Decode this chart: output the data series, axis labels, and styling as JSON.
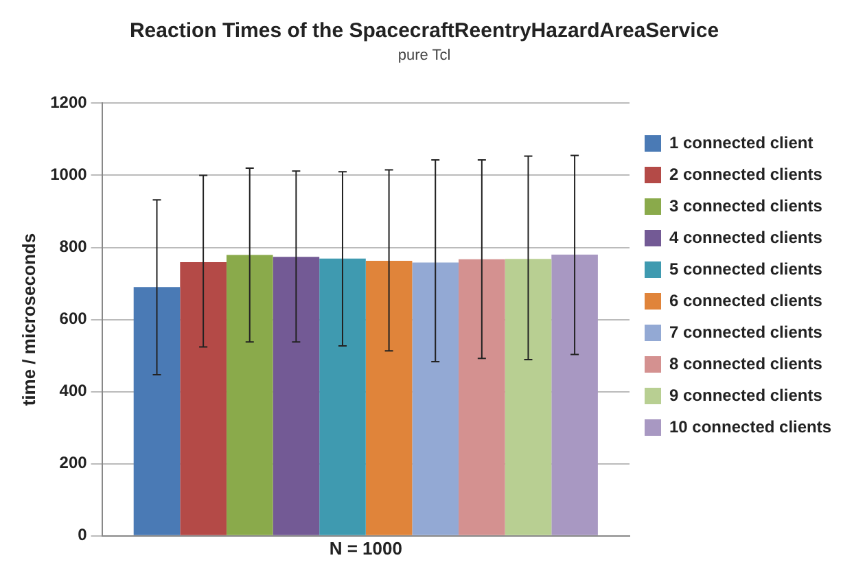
{
  "chart_data": {
    "type": "bar",
    "title": "Reaction Times of the SpacecraftReentryHazardAreaService",
    "subtitle": "pure Tcl",
    "xlabel": "N = 1000",
    "ylabel": "time / microseconds",
    "categories": [
      null
    ],
    "ylim": [
      0,
      1200
    ],
    "yticks": [
      0,
      200,
      400,
      600,
      800,
      1000,
      1200
    ],
    "grid": "y",
    "legend": "right",
    "series": [
      {
        "name": "1 connected client",
        "color": "#4a7ab5",
        "values": [
          690
        ],
        "errors": [
          [
            447,
            932
          ]
        ]
      },
      {
        "name": "2 connected clients",
        "color": "#b44a47",
        "values": [
          759
        ],
        "errors": [
          [
            524,
            1000
          ]
        ]
      },
      {
        "name": "3 connected clients",
        "color": "#8aaa4b",
        "values": [
          779
        ],
        "errors": [
          [
            538,
            1020
          ]
        ]
      },
      {
        "name": "4 connected clients",
        "color": "#735a95",
        "values": [
          774
        ],
        "errors": [
          [
            538,
            1012
          ]
        ]
      },
      {
        "name": "5 connected clients",
        "color": "#3f9ab0",
        "values": [
          769
        ],
        "errors": [
          [
            527,
            1010
          ]
        ]
      },
      {
        "name": "6 connected clients",
        "color": "#e0843a",
        "values": [
          763
        ],
        "errors": [
          [
            513,
            1015
          ]
        ]
      },
      {
        "name": "7 connected clients",
        "color": "#93a9d4",
        "values": [
          758
        ],
        "errors": [
          [
            483,
            1043
          ]
        ]
      },
      {
        "name": "8 connected clients",
        "color": "#d49190",
        "values": [
          767
        ],
        "errors": [
          [
            492,
            1043
          ]
        ]
      },
      {
        "name": "9 connected clients",
        "color": "#b8cf92",
        "values": [
          768
        ],
        "errors": [
          [
            489,
            1053
          ]
        ]
      },
      {
        "name": "10 connected clients",
        "color": "#a898c2",
        "values": [
          780
        ],
        "errors": [
          [
            503,
            1055
          ]
        ]
      }
    ]
  }
}
